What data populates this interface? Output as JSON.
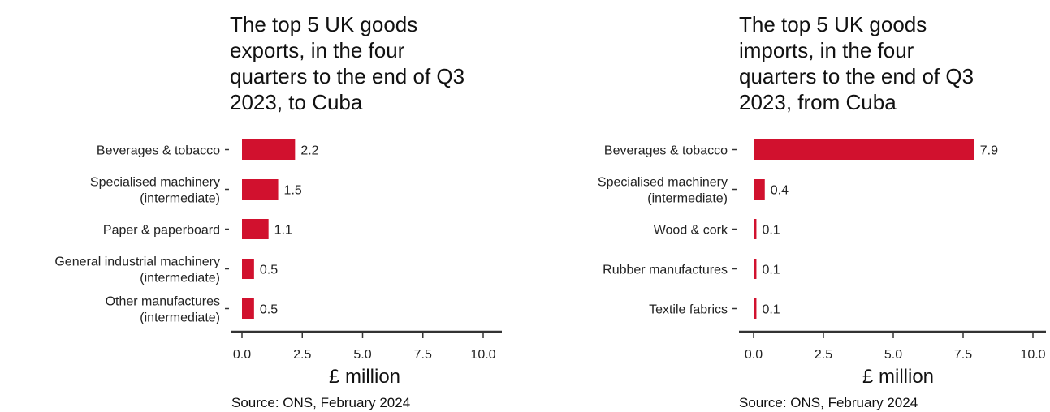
{
  "chart_data": [
    {
      "type": "bar",
      "orientation": "horizontal",
      "title": "The top 5 UK goods exports, in the four quarters to the end of Q3 2023, to Cuba",
      "title_lines": [
        "The top 5 UK goods",
        "exports, in the four",
        "quarters to the end of Q3",
        "2023, to Cuba"
      ],
      "categories": [
        [
          "Beverages & tobacco"
        ],
        [
          "Specialised machinery",
          "(intermediate)"
        ],
        [
          "Paper & paperboard"
        ],
        [
          "General industrial machinery",
          "(intermediate)"
        ],
        [
          "Other manufactures",
          "(intermediate)"
        ]
      ],
      "values": [
        2.2,
        1.5,
        1.1,
        0.5,
        0.5
      ],
      "value_labels": [
        "2.2",
        "1.5",
        "1.1",
        "0.5",
        "0.5"
      ],
      "xlabel": "£ million",
      "xlim": [
        0,
        10
      ],
      "xticks": [
        "0.0",
        "2.5",
        "5.0",
        "7.5",
        "10.0"
      ],
      "xtick_values": [
        0,
        2.5,
        5,
        7.5,
        10
      ],
      "grid": false,
      "bar_color": "#d1112e",
      "source": "Source: ONS, February 2024"
    },
    {
      "type": "bar",
      "orientation": "horizontal",
      "title": "The top 5 UK goods imports, in the four quarters to the end of Q3 2023, from Cuba",
      "title_lines": [
        "The top 5 UK goods",
        "imports, in the four",
        "quarters to the end of Q3",
        "2023, from Cuba"
      ],
      "categories": [
        [
          "Beverages & tobacco"
        ],
        [
          "Specialised machinery",
          "(intermediate)"
        ],
        [
          "Wood & cork"
        ],
        [
          "Rubber manufactures"
        ],
        [
          "Textile fabrics"
        ]
      ],
      "values": [
        7.9,
        0.4,
        0.1,
        0.1,
        0.1
      ],
      "value_labels": [
        "7.9",
        "0.4",
        "0.1",
        "0.1",
        "0.1"
      ],
      "xlabel": "£ million",
      "xlim": [
        0,
        10
      ],
      "xticks": [
        "0.0",
        "2.5",
        "5.0",
        "7.5",
        "10.0"
      ],
      "xtick_values": [
        0,
        2.5,
        5,
        7.5,
        10
      ],
      "grid": false,
      "bar_color": "#d1112e",
      "source": "Source: ONS, February 2024"
    }
  ]
}
